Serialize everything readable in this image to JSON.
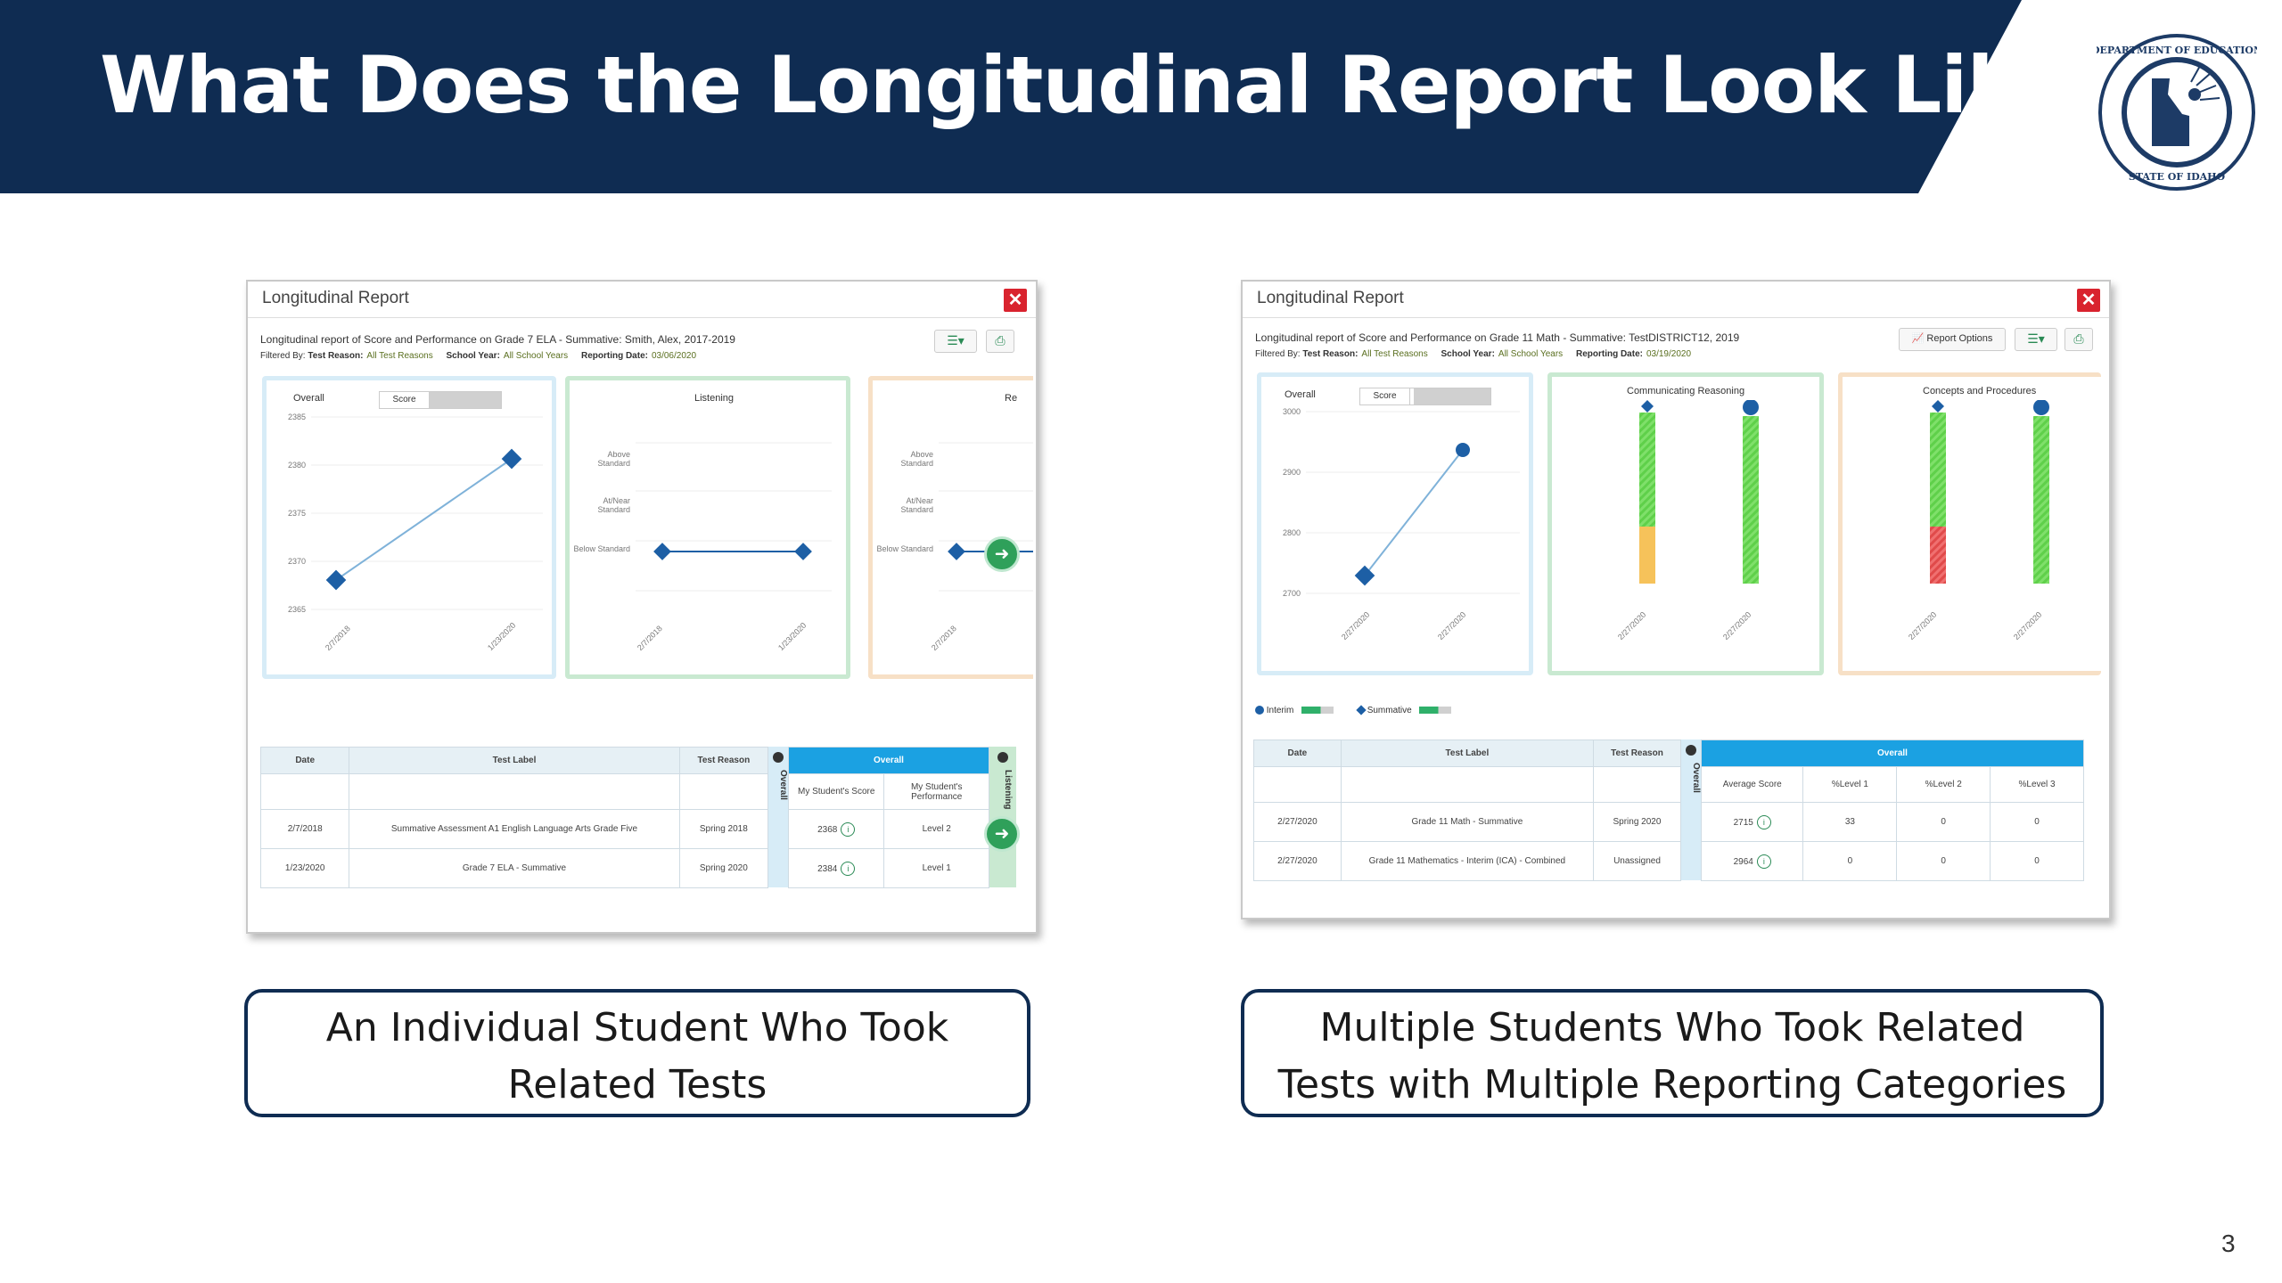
{
  "slide": {
    "title": "What Does the Longitudinal Report Look Like?",
    "page_number": "3",
    "seal_text": "DEPARTMENT OF EDUCATION · STATE OF IDAHO",
    "colors": {
      "banner": "#0f2c52",
      "overall_header": "#1ba1e2",
      "close": "#d9232e"
    }
  },
  "left": {
    "window_title": "Longitudinal Report",
    "subtitle": "Longitudinal report of Score and Performance on Grade 7 ELA - Summative: Smith, Alex, 2017-2019",
    "filters": {
      "test_reason_label": "Test Reason:",
      "test_reason": "All Test Reasons",
      "school_year_label": "School Year:",
      "school_year": "All School Years",
      "reporting_date_label": "Reporting Date:",
      "reporting_date": "03/06/2020",
      "filtered_by": "Filtered By:"
    },
    "panel1": {
      "toggle_overall": "Overall",
      "toggle_score": "Score",
      "y_ticks": [
        "2385",
        "2380",
        "2375",
        "2370",
        "2365"
      ],
      "x_ticks": [
        "2/7/2018",
        "1/23/2020"
      ]
    },
    "panel2": {
      "title": "Listening",
      "y_levels": [
        "Above Standard",
        "At/Near Standard",
        "Below Standard"
      ],
      "x_ticks": [
        "2/7/2018",
        "1/23/2020"
      ]
    },
    "panel3": {
      "title": "Re",
      "y_levels": [
        "Above Standard",
        "At/Near Standard",
        "Below Standard"
      ],
      "x_ticks": [
        "2/7/2018"
      ]
    },
    "table": {
      "headers": [
        "Date",
        "Test Label",
        "Test Reason"
      ],
      "overall": "Overall",
      "strip_label": "Overall",
      "strip_label2": "Listening",
      "sub_headers": [
        "My Student's Score",
        "My Student's Performance"
      ],
      "rows": [
        {
          "date": "2/7/2018",
          "label": "Summative Assessment A1 English Language Arts Grade Five",
          "reason": "Spring 2018",
          "score": "2368",
          "perf": "Level 2"
        },
        {
          "date": "1/23/2020",
          "label": "Grade 7 ELA - Summative",
          "reason": "Spring 2020",
          "score": "2384",
          "perf": "Level 1"
        }
      ]
    },
    "caption": [
      "An Individual Student Who Took",
      "Related Tests"
    ]
  },
  "right": {
    "window_title": "Longitudinal Report",
    "subtitle": "Longitudinal report of Score and Performance on Grade 11 Math - Summative: TestDISTRICT12, 2019",
    "filters": {
      "test_reason_label": "Test Reason:",
      "test_reason": "All Test Reasons",
      "school_year_label": "School Year:",
      "school_year": "All School Years",
      "reporting_date_label": "Reporting Date:",
      "reporting_date": "03/19/2020",
      "filtered_by": "Filtered By:"
    },
    "report_options": "Report Options",
    "panel1": {
      "toggle_overall": "Overall",
      "toggle_score": "Score",
      "y_ticks": [
        "3000",
        "2900",
        "2800",
        "2700"
      ],
      "x_ticks": [
        "2/27/2020",
        "2/27/2020"
      ]
    },
    "panel2": {
      "title": "Communicating Reasoning",
      "x_ticks": [
        "2/27/2020",
        "2/27/2020"
      ]
    },
    "panel3": {
      "title": "Concepts and Procedures",
      "x_ticks": [
        "2/27/2020",
        "2/27/2020"
      ]
    },
    "legend": [
      "Interim",
      "Summative"
    ],
    "table": {
      "headers": [
        "Date",
        "Test Label",
        "Test Reason"
      ],
      "overall": "Overall",
      "strip_label": "Overall",
      "sub_headers": [
        "Average Score",
        "%Level 1",
        "%Level 2",
        "%Level 3"
      ],
      "rows": [
        {
          "date": "2/27/2020",
          "label": "Grade 11 Math - Summative",
          "reason": "Spring 2020",
          "avg": "2715",
          "l1": "33",
          "l2": "0",
          "l3": "0"
        },
        {
          "date": "2/27/2020",
          "label": "Grade 11 Mathematics - Interim (ICA) - Combined",
          "reason": "Unassigned",
          "avg": "2964",
          "l1": "0",
          "l2": "0",
          "l3": "0"
        }
      ]
    },
    "caption": [
      "Multiple Students Who Took Related",
      "Tests with Multiple Reporting Categories"
    ]
  }
}
